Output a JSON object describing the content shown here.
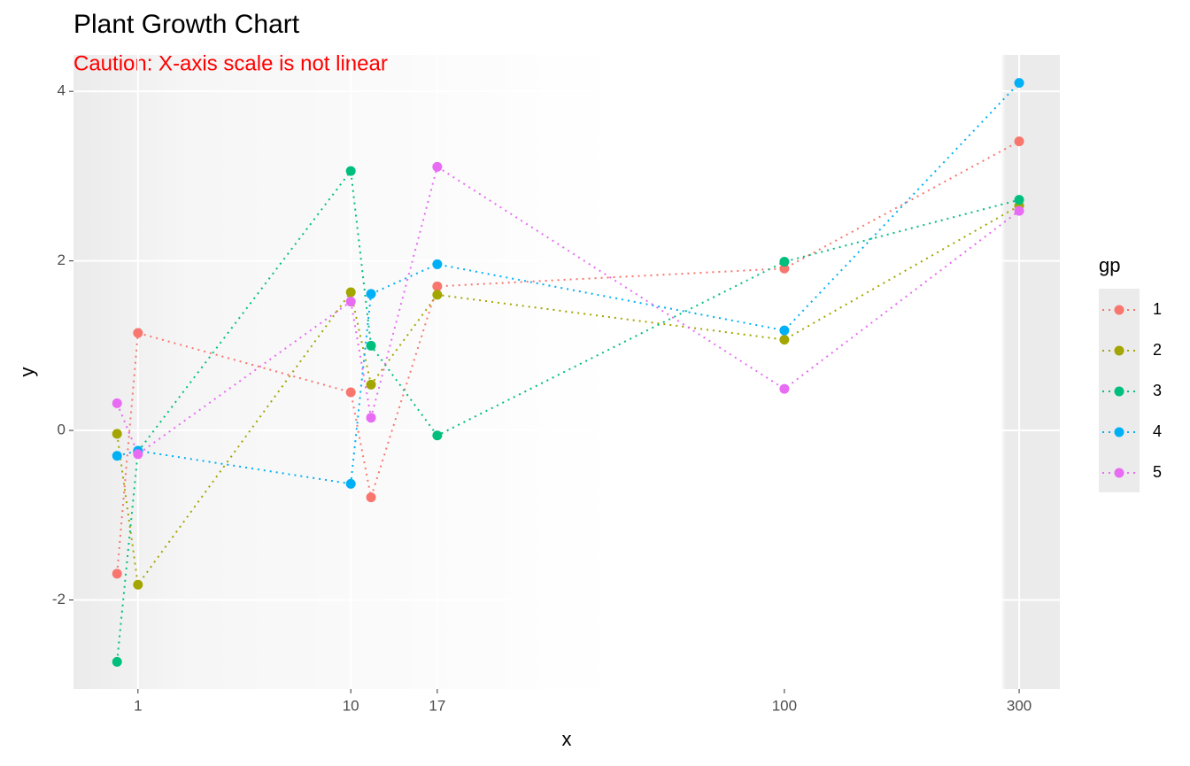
{
  "chart_data": {
    "type": "line",
    "title": "Plant Growth Chart",
    "subtitle": "Caution: X-axis scale is not linear",
    "x_label": "x",
    "y_label": "y",
    "legend_title": "gp",
    "x": [
      0.5,
      1,
      10,
      11.4,
      17,
      100,
      300
    ],
    "series": [
      {
        "name": "1",
        "color": "#F8766D",
        "values": [
          -1.69,
          1.15,
          0.45,
          -0.79,
          1.7,
          1.91,
          3.41
        ]
      },
      {
        "name": "2",
        "color": "#A3A500",
        "values": [
          -0.04,
          -1.82,
          1.63,
          0.54,
          1.6,
          1.07,
          2.65
        ]
      },
      {
        "name": "3",
        "color": "#00BF7D",
        "values": [
          -2.73,
          -0.25,
          3.06,
          1.0,
          -0.06,
          1.99,
          2.72
        ]
      },
      {
        "name": "4",
        "color": "#00B0F6",
        "values": [
          -0.3,
          -0.24,
          -0.63,
          1.61,
          1.96,
          1.18,
          4.1
        ]
      },
      {
        "name": "5",
        "color": "#E76BF3",
        "values": [
          0.32,
          -0.28,
          1.52,
          0.15,
          3.11,
          0.49,
          2.59
        ]
      }
    ],
    "xlim": [
      -0.4,
      362
    ],
    "xticks": [
      1,
      10,
      17,
      100,
      300
    ],
    "ylim": [
      -3.05,
      4.43
    ],
    "yticks": [
      -2,
      0,
      2,
      4
    ],
    "grid": true,
    "legend": "right"
  }
}
